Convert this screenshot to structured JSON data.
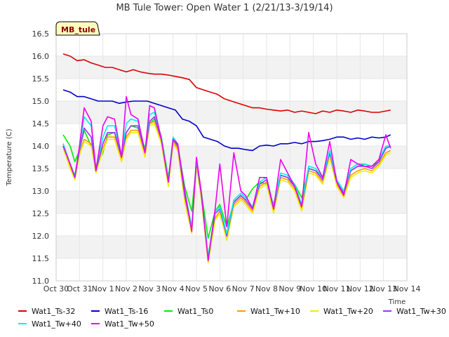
{
  "chart_data": {
    "type": "line",
    "title": "MB Tule Tower: Open Water 1 (2/21/13-3/19/14)",
    "xlabel": "Time",
    "ylabel": "Temperature (C)",
    "site_label": "MB_tule",
    "ylim": [
      11.0,
      16.5
    ],
    "yticks": [
      11.0,
      11.5,
      12.0,
      12.5,
      13.0,
      13.5,
      14.0,
      14.5,
      15.0,
      15.5,
      16.0,
      16.5
    ],
    "xlim": [
      0,
      15
    ],
    "xticks": [
      {
        "x": 0,
        "label": "Oct 30"
      },
      {
        "x": 1,
        "label": "Oct 31"
      },
      {
        "x": 2,
        "label": "Nov 1"
      },
      {
        "x": 3,
        "label": "Nov 2"
      },
      {
        "x": 4,
        "label": "Nov 3"
      },
      {
        "x": 5,
        "label": "Nov 4"
      },
      {
        "x": 6,
        "label": "Nov 5"
      },
      {
        "x": 7,
        "label": "Nov 6"
      },
      {
        "x": 8,
        "label": "Nov 7"
      },
      {
        "x": 9,
        "label": "Nov 8"
      },
      {
        "x": 10,
        "label": "Nov 9"
      },
      {
        "x": 11,
        "label": "Nov 10"
      },
      {
        "x": 12,
        "label": "Nov 11"
      },
      {
        "x": 13,
        "label": "Nov 12"
      },
      {
        "x": 14,
        "label": "Nov 13"
      },
      {
        "x": 15,
        "label": "Nov 14"
      }
    ],
    "series": [
      {
        "name": "Wat1_Ts-32",
        "color": "#dd0000",
        "x": [
          0.3,
          0.6,
          0.9,
          1.2,
          1.5,
          1.8,
          2.1,
          2.4,
          2.7,
          3.0,
          3.3,
          3.6,
          3.9,
          4.2,
          4.5,
          4.8,
          5.1,
          5.4,
          5.7,
          6.0,
          6.3,
          6.6,
          6.9,
          7.2,
          7.5,
          7.8,
          8.1,
          8.4,
          8.7,
          9.0,
          9.3,
          9.6,
          9.9,
          10.2,
          10.5,
          10.8,
          11.1,
          11.4,
          11.7,
          12.0,
          12.3,
          12.6,
          12.9,
          13.2,
          13.5,
          13.8,
          14.1,
          14.3
        ],
        "y": [
          16.05,
          16.0,
          15.9,
          15.92,
          15.85,
          15.8,
          15.75,
          15.75,
          15.7,
          15.65,
          15.7,
          15.65,
          15.62,
          15.6,
          15.6,
          15.58,
          15.55,
          15.52,
          15.48,
          15.3,
          15.25,
          15.2,
          15.15,
          15.05,
          15.0,
          14.95,
          14.9,
          14.85,
          14.85,
          14.82,
          14.8,
          14.78,
          14.8,
          14.75,
          14.78,
          14.75,
          14.72,
          14.78,
          14.75,
          14.8,
          14.78,
          14.75,
          14.8,
          14.78,
          14.75,
          14.75,
          14.78,
          14.8
        ]
      },
      {
        "name": "Wat1_Ts-16",
        "color": "#0000cc",
        "x": [
          0.3,
          0.6,
          0.9,
          1.2,
          1.5,
          1.8,
          2.1,
          2.4,
          2.7,
          3.0,
          3.3,
          3.6,
          3.9,
          4.2,
          4.5,
          4.8,
          5.1,
          5.4,
          5.7,
          6.0,
          6.3,
          6.6,
          6.9,
          7.2,
          7.5,
          7.8,
          8.1,
          8.4,
          8.7,
          9.0,
          9.3,
          9.6,
          9.9,
          10.2,
          10.5,
          10.8,
          11.1,
          11.4,
          11.7,
          12.0,
          12.3,
          12.6,
          12.9,
          13.2,
          13.5,
          13.8,
          14.1,
          14.3
        ],
        "y": [
          15.25,
          15.2,
          15.1,
          15.1,
          15.05,
          15.0,
          15.0,
          15.0,
          14.95,
          14.98,
          15.0,
          15.0,
          15.0,
          14.95,
          14.9,
          14.85,
          14.8,
          14.6,
          14.55,
          14.45,
          14.2,
          14.15,
          14.1,
          14.0,
          13.95,
          13.95,
          13.92,
          13.9,
          14.0,
          14.02,
          14.0,
          14.05,
          14.05,
          14.08,
          14.05,
          14.1,
          14.1,
          14.12,
          14.15,
          14.2,
          14.2,
          14.15,
          14.18,
          14.15,
          14.2,
          14.18,
          14.2,
          14.25
        ]
      },
      {
        "name": "Wat1_Ts0",
        "color": "#00ee00",
        "x": [
          0.3,
          0.6,
          0.8,
          1.0,
          1.2,
          1.5,
          1.7,
          2.0,
          2.2,
          2.5,
          2.8,
          3.0,
          3.2,
          3.5,
          3.8,
          4.0,
          4.2,
          4.5,
          4.8,
          5.0,
          5.2,
          5.5,
          5.8,
          6.0,
          6.2,
          6.5,
          6.8,
          7.0,
          7.3,
          7.6,
          7.9,
          8.1,
          8.4,
          8.7,
          9.0,
          9.3,
          9.6,
          9.9,
          10.2,
          10.5,
          10.8,
          11.1,
          11.4,
          11.7,
          12.0,
          12.3,
          12.6,
          12.9,
          13.2,
          13.5,
          13.8,
          14.1,
          14.3
        ],
        "y": [
          14.25,
          14.0,
          13.65,
          13.9,
          14.35,
          14.0,
          13.55,
          13.85,
          14.25,
          14.3,
          13.8,
          14.3,
          14.45,
          14.4,
          13.95,
          14.5,
          14.6,
          14.2,
          13.3,
          14.15,
          14.0,
          13.1,
          12.55,
          13.6,
          13.0,
          11.95,
          12.55,
          12.7,
          12.2,
          12.75,
          12.9,
          12.8,
          13.05,
          13.2,
          13.15,
          12.7,
          13.35,
          13.3,
          13.15,
          12.85,
          13.5,
          13.45,
          13.3,
          13.85,
          13.25,
          13.0,
          13.45,
          13.55,
          13.6,
          13.55,
          13.65,
          13.95,
          14.0
        ]
      },
      {
        "name": "Wat1_Tw+10",
        "color": "#ff9900",
        "x": [
          0.3,
          0.6,
          0.8,
          1.0,
          1.2,
          1.5,
          1.7,
          2.0,
          2.2,
          2.5,
          2.8,
          3.0,
          3.2,
          3.5,
          3.8,
          4.0,
          4.2,
          4.5,
          4.8,
          5.0,
          5.2,
          5.5,
          5.8,
          6.0,
          6.2,
          6.5,
          6.8,
          7.0,
          7.3,
          7.6,
          7.9,
          8.1,
          8.4,
          8.7,
          9.0,
          9.3,
          9.6,
          9.9,
          10.2,
          10.5,
          10.8,
          11.1,
          11.4,
          11.7,
          12.0,
          12.3,
          12.6,
          12.9,
          13.2,
          13.5,
          13.8,
          14.1,
          14.3
        ],
        "y": [
          14.0,
          13.55,
          13.3,
          13.85,
          14.15,
          14.05,
          13.45,
          13.95,
          14.2,
          14.2,
          13.7,
          14.2,
          14.35,
          14.35,
          13.8,
          14.5,
          14.55,
          14.1,
          13.15,
          14.1,
          13.95,
          12.8,
          12.1,
          13.6,
          12.9,
          11.45,
          12.4,
          12.55,
          11.95,
          12.7,
          12.85,
          12.75,
          12.55,
          13.1,
          13.2,
          12.55,
          13.3,
          13.25,
          13.05,
          12.6,
          13.45,
          13.4,
          13.2,
          13.8,
          13.15,
          12.9,
          13.35,
          13.45,
          13.5,
          13.45,
          13.6,
          13.85,
          13.9
        ]
      },
      {
        "name": "Wat1_Tw+20",
        "color": "#eeee00",
        "x": [
          0.3,
          0.6,
          0.8,
          1.0,
          1.2,
          1.5,
          1.7,
          2.0,
          2.2,
          2.5,
          2.8,
          3.0,
          3.2,
          3.5,
          3.8,
          4.0,
          4.2,
          4.5,
          4.8,
          5.0,
          5.2,
          5.5,
          5.8,
          6.0,
          6.2,
          6.5,
          6.8,
          7.0,
          7.3,
          7.6,
          7.9,
          8.1,
          8.4,
          8.7,
          9.0,
          9.3,
          9.6,
          9.9,
          10.2,
          10.5,
          10.8,
          11.1,
          11.4,
          11.7,
          12.0,
          12.3,
          12.6,
          12.9,
          13.2,
          13.5,
          13.8,
          14.1,
          14.3
        ],
        "y": [
          13.95,
          13.5,
          13.25,
          13.8,
          14.1,
          14.0,
          13.4,
          13.9,
          14.15,
          14.15,
          13.65,
          14.15,
          14.3,
          14.3,
          13.75,
          14.45,
          14.5,
          14.05,
          13.1,
          14.05,
          13.9,
          12.75,
          12.05,
          13.55,
          12.85,
          11.4,
          12.35,
          12.5,
          11.9,
          12.65,
          12.8,
          12.7,
          12.5,
          13.05,
          13.15,
          12.5,
          13.25,
          13.2,
          13.0,
          12.55,
          13.4,
          13.35,
          13.15,
          13.75,
          13.1,
          12.85,
          13.3,
          13.4,
          13.45,
          13.4,
          13.55,
          13.8,
          13.85
        ]
      },
      {
        "name": "Wat1_Tw+30",
        "color": "#9933ff",
        "x": [
          0.3,
          0.6,
          0.8,
          1.0,
          1.2,
          1.5,
          1.7,
          2.0,
          2.2,
          2.5,
          2.8,
          3.0,
          3.2,
          3.5,
          3.8,
          4.0,
          4.2,
          4.5,
          4.8,
          5.0,
          5.2,
          5.5,
          5.8,
          6.0,
          6.2,
          6.5,
          6.8,
          7.0,
          7.3,
          7.6,
          7.9,
          8.1,
          8.4,
          8.7,
          9.0,
          9.3,
          9.6,
          9.9,
          10.2,
          10.5,
          10.8,
          11.1,
          11.4,
          11.7,
          12.0,
          12.3,
          12.6,
          12.9,
          13.2,
          13.5,
          13.8,
          14.1,
          14.3
        ],
        "y": [
          14.05,
          13.6,
          13.3,
          13.9,
          14.4,
          14.2,
          13.45,
          14.05,
          14.3,
          14.3,
          13.75,
          14.3,
          14.45,
          14.45,
          13.85,
          14.55,
          14.65,
          14.15,
          13.2,
          14.15,
          14.0,
          12.9,
          12.15,
          13.65,
          12.95,
          11.5,
          12.5,
          12.6,
          12.0,
          12.75,
          12.9,
          12.8,
          12.6,
          13.15,
          13.25,
          12.6,
          13.35,
          13.3,
          13.1,
          12.65,
          13.5,
          13.45,
          13.25,
          13.85,
          13.2,
          12.95,
          13.45,
          13.55,
          13.55,
          13.5,
          13.65,
          13.95,
          14.0
        ]
      },
      {
        "name": "Wat1_Tw+40",
        "color": "#00eeee",
        "x": [
          0.3,
          0.6,
          0.8,
          1.0,
          1.2,
          1.5,
          1.7,
          2.0,
          2.2,
          2.5,
          2.8,
          3.0,
          3.2,
          3.5,
          3.8,
          4.0,
          4.2,
          4.5,
          4.8,
          5.0,
          5.2,
          5.5,
          5.8,
          6.0,
          6.2,
          6.5,
          6.8,
          7.0,
          7.3,
          7.6,
          7.9,
          8.1,
          8.4,
          8.7,
          9.0,
          9.3,
          9.6,
          9.9,
          10.2,
          10.5,
          10.8,
          11.1,
          11.4,
          11.7,
          12.0,
          12.3,
          12.6,
          12.9,
          13.2,
          13.5,
          13.8,
          14.1,
          14.3
        ],
        "y": [
          14.05,
          13.6,
          13.35,
          13.95,
          14.65,
          14.45,
          13.5,
          14.2,
          14.45,
          14.45,
          13.8,
          14.5,
          14.6,
          14.55,
          13.9,
          14.7,
          14.75,
          14.2,
          13.25,
          14.2,
          14.05,
          13.0,
          12.2,
          13.7,
          13.0,
          11.55,
          12.55,
          12.65,
          12.05,
          12.8,
          12.95,
          12.85,
          12.65,
          13.2,
          13.3,
          12.65,
          13.4,
          13.35,
          13.15,
          12.7,
          13.55,
          13.5,
          13.3,
          13.9,
          13.25,
          13.0,
          13.5,
          13.6,
          13.6,
          13.55,
          13.7,
          14.0,
          14.0
        ]
      },
      {
        "name": "Wat1_Tw+50",
        "color": "#ee00ee",
        "x": [
          0.3,
          0.6,
          0.8,
          1.0,
          1.2,
          1.5,
          1.7,
          2.0,
          2.2,
          2.5,
          2.8,
          3.0,
          3.2,
          3.5,
          3.8,
          4.0,
          4.2,
          4.5,
          4.8,
          5.0,
          5.2,
          5.5,
          5.8,
          6.0,
          6.2,
          6.5,
          6.8,
          7.0,
          7.3,
          7.6,
          7.9,
          8.1,
          8.4,
          8.7,
          9.0,
          9.3,
          9.6,
          9.9,
          10.2,
          10.5,
          10.8,
          11.1,
          11.4,
          11.7,
          12.0,
          12.3,
          12.6,
          12.9,
          13.2,
          13.5,
          13.8,
          14.1,
          14.3
        ],
        "y": [
          14.0,
          13.6,
          13.3,
          14.0,
          14.85,
          14.55,
          13.45,
          14.45,
          14.65,
          14.6,
          13.75,
          15.1,
          14.7,
          14.6,
          13.85,
          14.9,
          14.85,
          14.15,
          13.2,
          14.15,
          14.05,
          13.0,
          12.1,
          13.75,
          13.0,
          11.45,
          12.6,
          13.6,
          12.2,
          13.85,
          13.0,
          12.9,
          12.6,
          13.3,
          13.3,
          12.6,
          13.7,
          13.4,
          13.1,
          12.65,
          14.3,
          13.6,
          13.3,
          14.1,
          13.2,
          12.9,
          13.7,
          13.6,
          13.55,
          13.55,
          13.7,
          14.25,
          13.95
        ]
      }
    ]
  }
}
